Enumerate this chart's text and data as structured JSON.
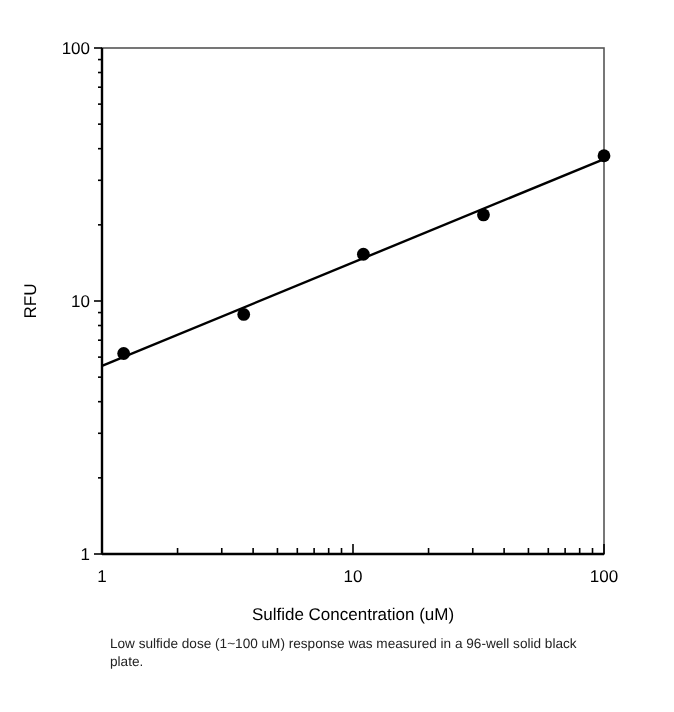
{
  "chart_data": {
    "type": "scatter",
    "xlabel": "Sulfide Concentration (uM)",
    "ylabel": "RFU",
    "log": "xy",
    "grid": false,
    "xlim": [
      1,
      100
    ],
    "ylim": [
      1,
      100
    ],
    "xticks": [
      1,
      {
        "value": 2,
        "label": null
      },
      {
        "value": 3,
        "label": null
      },
      {
        "value": 4,
        "label": null
      },
      {
        "value": 5,
        "label": null
      },
      {
        "value": 6,
        "label": null
      },
      {
        "value": 7,
        "label": null
      },
      {
        "value": 8,
        "label": null
      },
      {
        "value": 9,
        "label": null
      },
      10,
      {
        "value": 20,
        "label": null
      },
      {
        "value": 30,
        "label": null
      },
      {
        "value": 40,
        "label": null
      },
      {
        "value": 50,
        "label": null
      },
      {
        "value": 60,
        "label": null
      },
      {
        "value": 70,
        "label": null
      },
      {
        "value": 80,
        "label": null
      },
      {
        "value": 90,
        "label": null
      },
      100
    ],
    "yticks": [
      1,
      {
        "value": 2,
        "label": null
      },
      {
        "value": 3,
        "label": null
      },
      {
        "value": 4,
        "label": null
      },
      {
        "value": 5,
        "label": null
      },
      {
        "value": 6,
        "label": null
      },
      {
        "value": 7,
        "label": null
      },
      {
        "value": 8,
        "label": null
      },
      {
        "value": 9,
        "label": null
      },
      10,
      {
        "value": 20,
        "label": null
      },
      {
        "value": 30,
        "label": null
      },
      {
        "value": 40,
        "label": null
      },
      {
        "value": 50,
        "label": null
      },
      {
        "value": 60,
        "label": null
      },
      {
        "value": 70,
        "label": null
      },
      {
        "value": 80,
        "label": null
      },
      {
        "value": 90,
        "label": null
      },
      100
    ],
    "series": [
      {
        "marker": "circle",
        "color": "#000000",
        "x": [
          1.22,
          3.67,
          11.0,
          33.1,
          100
        ],
        "values": [
          6.2,
          8.85,
          15.3,
          21.9,
          37.5
        ]
      },
      {
        "type": "line",
        "color": "#000000",
        "marker": "none",
        "x": [
          1,
          100
        ],
        "values": [
          5.54,
          36.4
        ]
      }
    ],
    "annotations": [
      "Low sulfide dose (1~100 uM) response was measured in a 96-well solid black plate."
    ]
  }
}
